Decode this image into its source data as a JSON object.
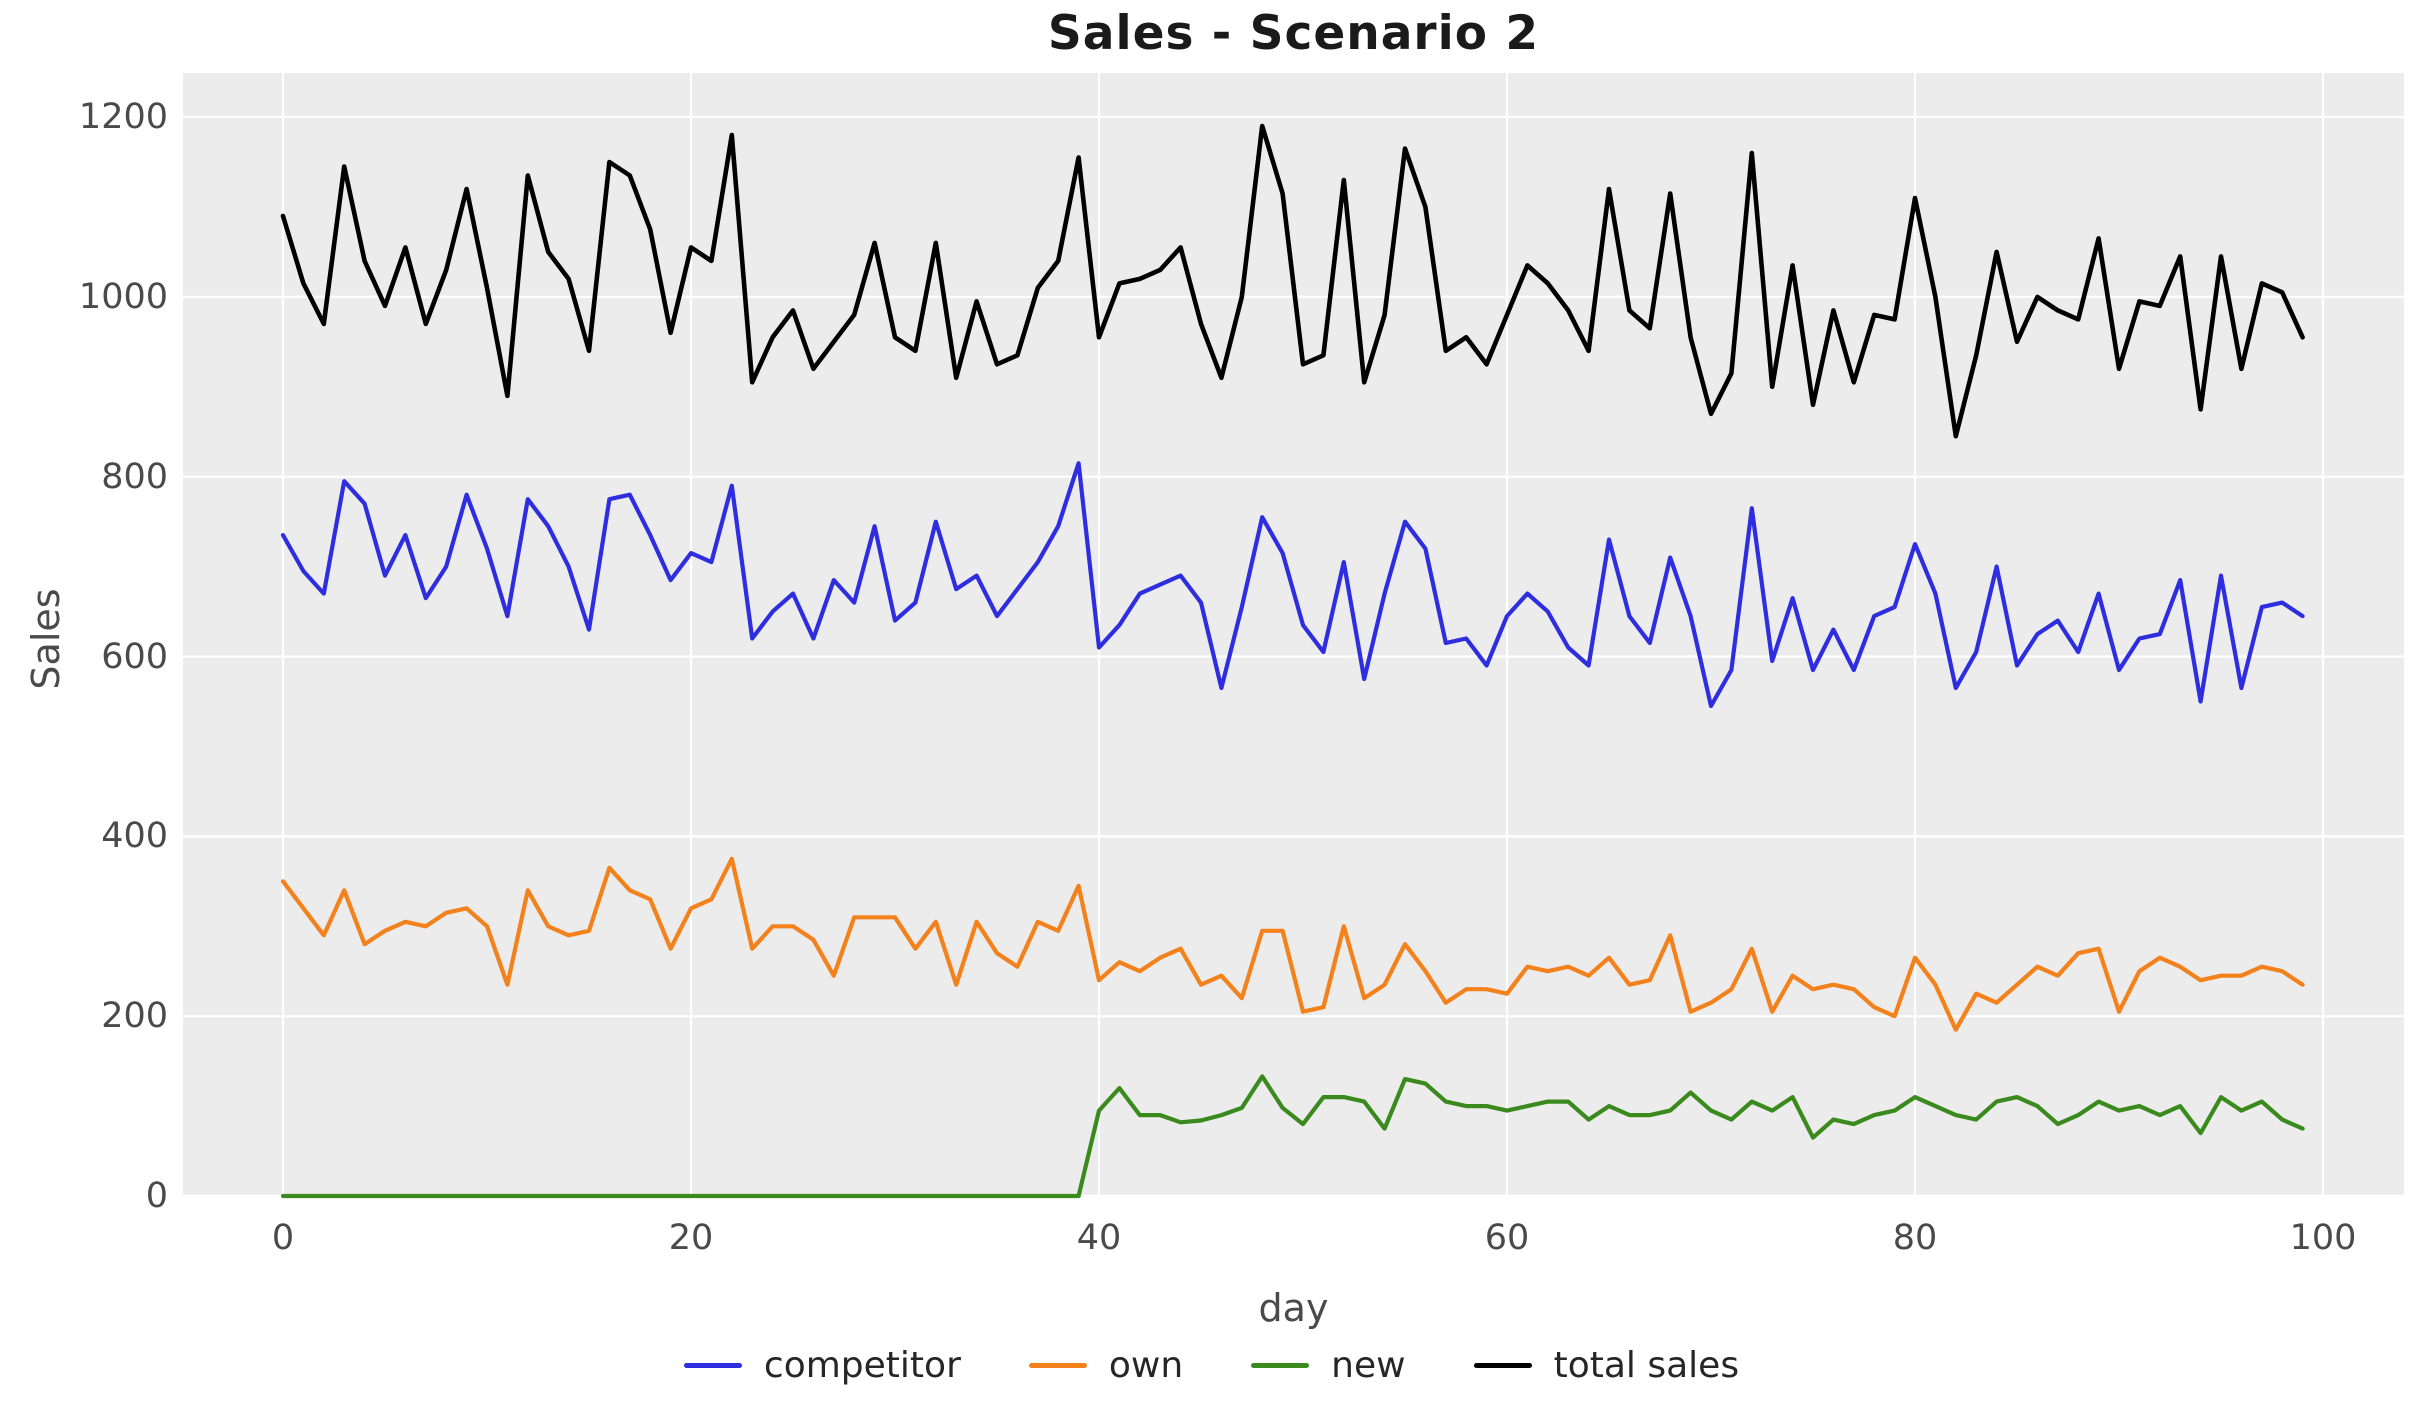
{
  "title": "Sales - Scenario 2",
  "x_axis": {
    "label": "day",
    "ticks": [
      0,
      20,
      40,
      60,
      80,
      100
    ]
  },
  "y_axis": {
    "label": "Sales",
    "ticks": [
      0,
      200,
      400,
      600,
      800,
      1000,
      1200
    ]
  },
  "colors": {
    "competitor": "#2e2ee0",
    "own": "#f3811c",
    "new": "#3a8a1d",
    "total_sales": "#000000",
    "plot_background": "#ececec",
    "gridline": "#ffffff",
    "tick_text": "#4a4a4a",
    "title_text": "#1a1a1a"
  },
  "legend": [
    {
      "label": "competitor",
      "color": "#2e2ee0"
    },
    {
      "label": "own",
      "color": "#f3811c"
    },
    {
      "label": "new",
      "color": "#3a8a1d"
    },
    {
      "label": "total sales",
      "color": "#000000"
    }
  ],
  "chart_data": {
    "type": "line",
    "title": "Sales - Scenario 2",
    "xlabel": "day",
    "ylabel": "Sales",
    "xlim": [
      -5,
      104
    ],
    "ylim": [
      0,
      1249
    ],
    "grid": true,
    "legend_position": "bottom",
    "x": [
      0,
      1,
      2,
      3,
      4,
      5,
      6,
      7,
      8,
      9,
      10,
      11,
      12,
      13,
      14,
      15,
      16,
      17,
      18,
      19,
      20,
      21,
      22,
      23,
      24,
      25,
      26,
      27,
      28,
      29,
      30,
      31,
      32,
      33,
      34,
      35,
      36,
      37,
      38,
      39,
      40,
      41,
      42,
      43,
      44,
      45,
      46,
      47,
      48,
      49,
      50,
      51,
      52,
      53,
      54,
      55,
      56,
      57,
      58,
      59,
      60,
      61,
      62,
      63,
      64,
      65,
      66,
      67,
      68,
      69,
      70,
      71,
      72,
      73,
      74,
      75,
      76,
      77,
      78,
      79,
      80,
      81,
      82,
      83,
      84,
      85,
      86,
      87,
      88,
      89,
      90,
      91,
      92,
      93,
      94,
      95,
      96,
      97,
      98,
      99
    ],
    "series": [
      {
        "name": "competitor",
        "color": "#2e2ee0",
        "values": [
          735,
          695,
          670,
          795,
          770,
          690,
          735,
          665,
          700,
          780,
          720,
          645,
          775,
          745,
          700,
          630,
          775,
          780,
          735,
          685,
          715,
          705,
          790,
          620,
          650,
          670,
          620,
          685,
          660,
          745,
          640,
          660,
          750,
          675,
          690,
          645,
          675,
          705,
          745,
          815,
          610,
          635,
          670,
          680,
          690,
          660,
          565,
          655,
          755,
          715,
          635,
          605,
          705,
          575,
          670,
          750,
          720,
          615,
          620,
          590,
          645,
          670,
          650,
          610,
          590,
          730,
          645,
          615,
          710,
          645,
          545,
          585,
          765,
          595,
          665,
          585,
          630,
          585,
          645,
          655,
          725,
          670,
          565,
          605,
          700,
          590,
          625,
          640,
          605,
          670,
          585,
          620,
          625,
          685,
          550,
          690,
          565,
          655,
          660,
          645
        ]
      },
      {
        "name": "own",
        "color": "#f3811c",
        "values": [
          350,
          320,
          290,
          340,
          280,
          295,
          305,
          300,
          315,
          320,
          300,
          235,
          340,
          300,
          290,
          295,
          365,
          340,
          330,
          275,
          320,
          330,
          375,
          275,
          300,
          300,
          285,
          245,
          310,
          310,
          310,
          275,
          305,
          235,
          305,
          270,
          255,
          305,
          295,
          345,
          240,
          260,
          250,
          265,
          275,
          235,
          245,
          220,
          295,
          295,
          205,
          210,
          300,
          220,
          235,
          280,
          250,
          215,
          230,
          230,
          225,
          255,
          250,
          255,
          245,
          265,
          235,
          240,
          290,
          205,
          215,
          230,
          275,
          205,
          245,
          230,
          235,
          230,
          210,
          200,
          265,
          235,
          185,
          225,
          215,
          235,
          255,
          245,
          270,
          275,
          205,
          250,
          265,
          255,
          240,
          245,
          245,
          255,
          250,
          235
        ]
      },
      {
        "name": "new",
        "color": "#3a8a1d",
        "values": [
          0,
          0,
          0,
          0,
          0,
          0,
          0,
          0,
          0,
          0,
          0,
          0,
          0,
          0,
          0,
          0,
          0,
          0,
          0,
          0,
          0,
          0,
          0,
          0,
          0,
          0,
          0,
          0,
          0,
          0,
          0,
          0,
          0,
          0,
          0,
          0,
          0,
          0,
          0,
          0,
          95,
          120,
          90,
          90,
          82,
          84,
          90,
          98,
          133,
          98,
          80,
          110,
          110,
          105,
          75,
          130,
          125,
          105,
          100,
          100,
          95,
          100,
          105,
          105,
          85,
          100,
          90,
          90,
          95,
          115,
          95,
          85,
          105,
          95,
          110,
          65,
          85,
          80,
          90,
          95,
          110,
          100,
          90,
          85,
          105,
          110,
          100,
          80,
          90,
          105,
          95,
          100,
          90,
          100,
          70,
          110,
          95,
          105,
          85,
          75
        ]
      },
      {
        "name": "total sales",
        "color": "#000000",
        "values": [
          1090,
          1015,
          970,
          1145,
          1040,
          990,
          1055,
          970,
          1030,
          1120,
          1010,
          890,
          1135,
          1050,
          1020,
          940,
          1150,
          1135,
          1075,
          960,
          1055,
          1040,
          1180,
          905,
          955,
          985,
          920,
          950,
          980,
          1060,
          955,
          940,
          1060,
          910,
          995,
          925,
          935,
          1010,
          1040,
          1155,
          955,
          1015,
          1020,
          1030,
          1055,
          970,
          910,
          1000,
          1190,
          1115,
          925,
          935,
          1130,
          905,
          980,
          1165,
          1100,
          940,
          955,
          925,
          980,
          1035,
          1015,
          985,
          940,
          1120,
          985,
          965,
          1115,
          955,
          870,
          915,
          1160,
          900,
          1035,
          880,
          985,
          905,
          980,
          975,
          1110,
          1000,
          845,
          935,
          1050,
          950,
          1000,
          985,
          975,
          1065,
          920,
          995,
          990,
          1045,
          875,
          1045,
          920,
          1015,
          1005,
          955
        ]
      }
    ]
  }
}
